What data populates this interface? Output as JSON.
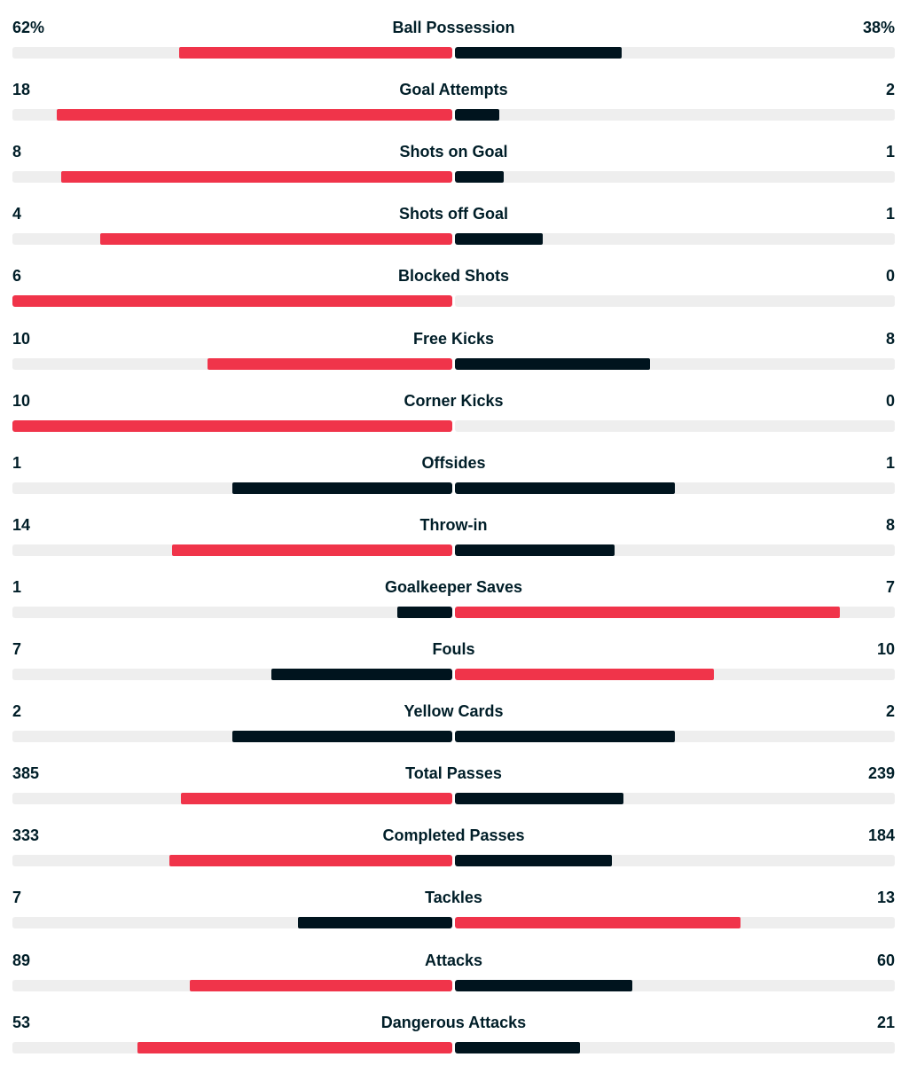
{
  "colors": {
    "leading": "#f0344a",
    "trailing": "#00141e",
    "track": "#eeeeee",
    "text": "#001e28"
  },
  "stats": [
    {
      "label": "Ball Possession",
      "home": "62%",
      "away": "38%",
      "home_value": 62,
      "away_value": 38
    },
    {
      "label": "Goal Attempts",
      "home": "18",
      "away": "2",
      "home_value": 18,
      "away_value": 2
    },
    {
      "label": "Shots on Goal",
      "home": "8",
      "away": "1",
      "home_value": 8,
      "away_value": 1
    },
    {
      "label": "Shots off Goal",
      "home": "4",
      "away": "1",
      "home_value": 4,
      "away_value": 1
    },
    {
      "label": "Blocked Shots",
      "home": "6",
      "away": "0",
      "home_value": 6,
      "away_value": 0
    },
    {
      "label": "Free Kicks",
      "home": "10",
      "away": "8",
      "home_value": 10,
      "away_value": 8
    },
    {
      "label": "Corner Kicks",
      "home": "10",
      "away": "0",
      "home_value": 10,
      "away_value": 0
    },
    {
      "label": "Offsides",
      "home": "1",
      "away": "1",
      "home_value": 1,
      "away_value": 1
    },
    {
      "label": "Throw-in",
      "home": "14",
      "away": "8",
      "home_value": 14,
      "away_value": 8
    },
    {
      "label": "Goalkeeper Saves",
      "home": "1",
      "away": "7",
      "home_value": 1,
      "away_value": 7
    },
    {
      "label": "Fouls",
      "home": "7",
      "away": "10",
      "home_value": 7,
      "away_value": 10
    },
    {
      "label": "Yellow Cards",
      "home": "2",
      "away": "2",
      "home_value": 2,
      "away_value": 2
    },
    {
      "label": "Total Passes",
      "home": "385",
      "away": "239",
      "home_value": 385,
      "away_value": 239
    },
    {
      "label": "Completed Passes",
      "home": "333",
      "away": "184",
      "home_value": 333,
      "away_value": 184
    },
    {
      "label": "Tackles",
      "home": "7",
      "away": "13",
      "home_value": 7,
      "away_value": 13
    },
    {
      "label": "Attacks",
      "home": "89",
      "away": "60",
      "home_value": 89,
      "away_value": 60
    },
    {
      "label": "Dangerous Attacks",
      "home": "53",
      "away": "21",
      "home_value": 53,
      "away_value": 21
    }
  ]
}
